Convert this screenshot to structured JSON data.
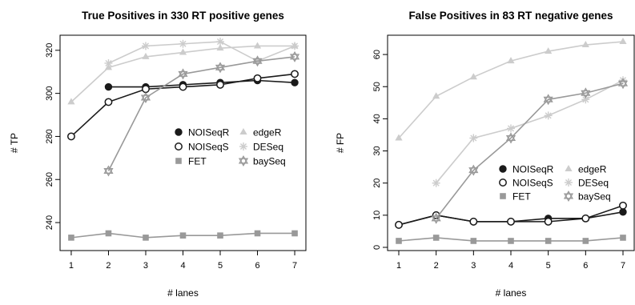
{
  "chart_data": [
    {
      "type": "line",
      "title": "True Positives in 330 RT positive genes",
      "xlabel": "# lanes",
      "ylabel": "# TP",
      "x": [
        1,
        2,
        3,
        4,
        5,
        6,
        7
      ],
      "xlim": [
        0.7,
        7.3
      ],
      "ylim": [
        227,
        327
      ],
      "yticks": [
        240,
        260,
        280,
        300,
        320
      ],
      "grid": false,
      "legend": "center-right",
      "series": [
        {
          "name": "NOISeqR",
          "color": "#1a1a1a",
          "marker": "filled-circle",
          "values": [
            null,
            303,
            303,
            304,
            305,
            306,
            305
          ]
        },
        {
          "name": "NOISeqS",
          "color": "#1a1a1a",
          "marker": "open-circle",
          "values": [
            280,
            296,
            302,
            303,
            304,
            307,
            309
          ]
        },
        {
          "name": "FET",
          "color": "#999999",
          "marker": "filled-square",
          "values": [
            233,
            235,
            233,
            234,
            234,
            235,
            235
          ]
        },
        {
          "name": "edgeR",
          "color": "#cccccc",
          "marker": "filled-triangle",
          "values": [
            296,
            312,
            317,
            319,
            321,
            322,
            322
          ]
        },
        {
          "name": "DESeq",
          "color": "#cccccc",
          "marker": "asterisk",
          "values": [
            null,
            314,
            322,
            323,
            324,
            315,
            322
          ]
        },
        {
          "name": "baySeq",
          "color": "#999999",
          "marker": "star-of-david",
          "values": [
            null,
            264,
            298,
            309,
            312,
            315,
            317
          ]
        }
      ]
    },
    {
      "type": "line",
      "title": "False Positives in 83 RT negative genes",
      "xlabel": "# lanes",
      "ylabel": "# FP",
      "x": [
        1,
        2,
        3,
        4,
        5,
        6,
        7
      ],
      "xlim": [
        0.7,
        7.3
      ],
      "ylim": [
        -1,
        66
      ],
      "yticks": [
        0,
        10,
        20,
        30,
        40,
        50,
        60
      ],
      "grid": false,
      "legend": "center-right",
      "series": [
        {
          "name": "NOISeqR",
          "color": "#1a1a1a",
          "marker": "filled-circle",
          "values": [
            7,
            10,
            8,
            8,
            9,
            9,
            11
          ]
        },
        {
          "name": "NOISeqS",
          "color": "#1a1a1a",
          "marker": "open-circle",
          "values": [
            7,
            10,
            8,
            8,
            8,
            9,
            13
          ]
        },
        {
          "name": "FET",
          "color": "#999999",
          "marker": "filled-square",
          "values": [
            2,
            3,
            2,
            2,
            2,
            2,
            3
          ]
        },
        {
          "name": "edgeR",
          "color": "#cccccc",
          "marker": "filled-triangle",
          "values": [
            34,
            47,
            53,
            58,
            61,
            63,
            64
          ]
        },
        {
          "name": "DESeq",
          "color": "#cccccc",
          "marker": "asterisk",
          "values": [
            null,
            20,
            34,
            37,
            41,
            46,
            52
          ]
        },
        {
          "name": "baySeq",
          "color": "#999999",
          "marker": "star-of-david",
          "values": [
            null,
            9,
            24,
            34,
            46,
            48,
            51
          ]
        }
      ]
    }
  ]
}
